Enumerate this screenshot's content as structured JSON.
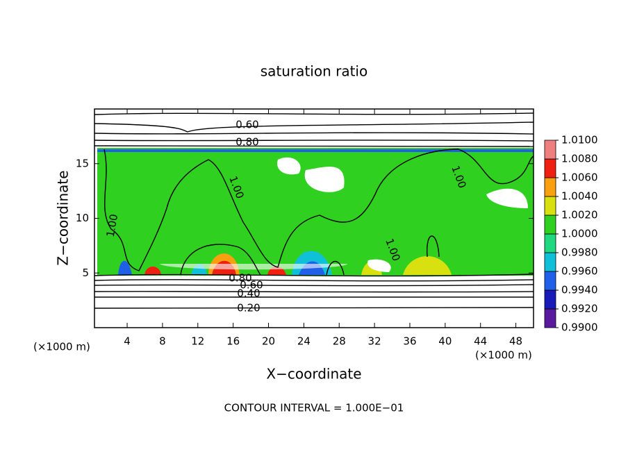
{
  "chart_data": {
    "type": "heatmap",
    "title": "saturation ratio",
    "x_label": "X−coordinate",
    "y_label": "Z−coordinate",
    "x_unit": "(×1000 m)",
    "xlim": [
      0.3,
      50
    ],
    "xticks": [
      4,
      8,
      12,
      16,
      20,
      24,
      28,
      32,
      36,
      40,
      44,
      48
    ],
    "ylim": [
      0,
      20
    ],
    "yticks": [
      5,
      10,
      15
    ],
    "colorbar": {
      "lim": [
        0.99,
        1.01
      ],
      "ticks": [
        {
          "value": 0.99,
          "label": "0.9900"
        },
        {
          "value": 0.992,
          "label": "0.9920"
        },
        {
          "value": 0.994,
          "label": "0.9940"
        },
        {
          "value": 0.996,
          "label": "0.9960"
        },
        {
          "value": 0.998,
          "label": "0.9980"
        },
        {
          "value": 1.0,
          "label": "1.0000"
        },
        {
          "value": 1.002,
          "label": "1.0020"
        },
        {
          "value": 1.004,
          "label": "1.0040"
        },
        {
          "value": 1.006,
          "label": "1.0060"
        },
        {
          "value": 1.008,
          "label": "1.0080"
        },
        {
          "value": 1.01,
          "label": "1.0100"
        }
      ],
      "colors": [
        "#5a1aa0",
        "#1a1ab8",
        "#2060e8",
        "#10c0d8",
        "#20d880",
        "#30d020",
        "#d8e010",
        "#f8a010",
        "#f02010",
        "#f08080"
      ]
    },
    "contours": [
      {
        "value": 0.6,
        "label": "0.60"
      },
      {
        "value": 0.8,
        "label": "0.80"
      },
      {
        "value": 0.8,
        "label": "0.80"
      },
      {
        "value": 0.6,
        "label": "0.60"
      },
      {
        "value": 0.4,
        "label": "0.40"
      },
      {
        "value": 0.2,
        "label": "0.20"
      },
      {
        "value": 1,
        "label": "1.00"
      },
      {
        "value": 1,
        "label": "1.00"
      },
      {
        "value": 1,
        "label": "1.00"
      },
      {
        "value": 1,
        "label": "1.00"
      }
    ],
    "footer": "CONTOUR INTERVAL = 1.000E−01"
  }
}
